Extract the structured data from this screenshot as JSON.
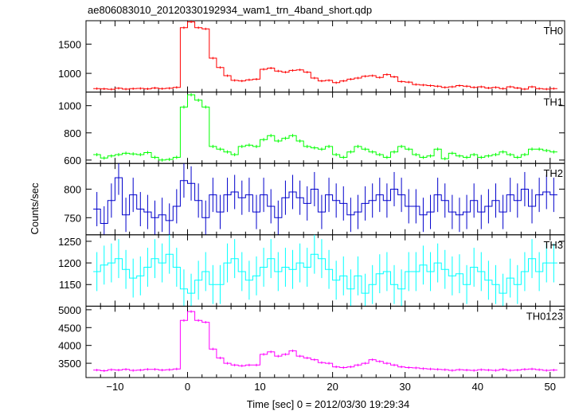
{
  "chart_data": {
    "type": "line",
    "style": "step histogram with error bars",
    "title": "ae806083010_20120330192934_wam1_trn_4band_short.qdp",
    "xlabel": "Time [sec] 0 = 2012/03/30 19:29:34",
    "ylabel": "Counts/sec",
    "xlim": [
      -14,
      52
    ],
    "x_ticks": [
      -10,
      0,
      10,
      20,
      30,
      40,
      50
    ],
    "x": [
      -12.5,
      -11.5,
      -10.5,
      -9.5,
      -8.5,
      -7.5,
      -6.5,
      -5.5,
      -4.5,
      -3.5,
      -2.5,
      -1.5,
      -0.5,
      0.5,
      1.5,
      2.5,
      3.5,
      4.5,
      5.5,
      6.5,
      7.5,
      8.5,
      9.5,
      10.5,
      11.5,
      12.5,
      13.5,
      14.5,
      15.5,
      16.5,
      17.5,
      18.5,
      19.5,
      20.5,
      21.5,
      22.5,
      23.5,
      24.5,
      25.5,
      26.5,
      27.5,
      28.5,
      29.5,
      30.5,
      31.5,
      32.5,
      33.5,
      34.5,
      35.5,
      36.5,
      37.5,
      38.5,
      39.5,
      40.5,
      41.5,
      42.5,
      43.5,
      44.5,
      45.5,
      46.5,
      47.5,
      48.5,
      49.5,
      50.5
    ],
    "panels": [
      {
        "name": "TH0",
        "color": "#ff0000",
        "ylim": [
          680,
          1900
        ],
        "y_ticks": [
          1000,
          1500
        ],
        "error": 20,
        "values": [
          740,
          735,
          728,
          745,
          730,
          738,
          742,
          735,
          750,
          738,
          745,
          760,
          1780,
          1880,
          1780,
          1760,
          1260,
          1100,
          960,
          880,
          870,
          890,
          900,
          1070,
          1090,
          1040,
          1020,
          1050,
          1060,
          1020,
          920,
          870,
          880,
          840,
          870,
          900,
          920,
          950,
          960,
          930,
          980,
          940,
          860,
          850,
          810,
          800,
          790,
          780,
          760,
          770,
          790,
          780,
          760,
          770,
          750,
          760,
          740,
          770,
          750,
          730,
          770,
          740,
          730,
          740
        ]
      },
      {
        "name": "TH1",
        "color": "#00ff00",
        "ylim": [
          575,
          1100
        ],
        "y_ticks": [
          600,
          800,
          1000
        ],
        "error": 12,
        "values": [
          640,
          615,
          630,
          640,
          650,
          645,
          640,
          655,
          620,
          600,
          605,
          620,
          990,
          1080,
          1040,
          990,
          700,
          680,
          660,
          640,
          700,
          710,
          700,
          750,
          780,
          740,
          760,
          780,
          740,
          700,
          690,
          680,
          700,
          640,
          620,
          660,
          700,
          680,
          660,
          640,
          620,
          660,
          700,
          680,
          640,
          620,
          630,
          680,
          610,
          650,
          630,
          620,
          640,
          620,
          630,
          640,
          660,
          640,
          620,
          640,
          680,
          680,
          670,
          660
        ]
      },
      {
        "name": "TH2",
        "color": "#0000cc",
        "ylim": [
          720,
          845
        ],
        "y_ticks": [
          750,
          800
        ],
        "error": 30,
        "values": [
          765,
          740,
          780,
          820,
          755,
          790,
          765,
          760,
          750,
          755,
          745,
          770,
          815,
          810,
          780,
          750,
          790,
          760,
          790,
          795,
          785,
          790,
          760,
          790,
          770,
          750,
          785,
          795,
          785,
          775,
          800,
          760,
          790,
          780,
          775,
          755,
          760,
          775,
          780,
          790,
          780,
          800,
          790,
          770,
          770,
          755,
          760,
          790,
          780,
          760,
          755,
          760,
          780,
          760,
          770,
          780,
          760,
          790,
          780,
          800,
          770,
          790,
          795,
          790
        ]
      },
      {
        "name": "TH3",
        "color": "#00ffff",
        "ylim": [
          1100,
          1265
        ],
        "y_ticks": [
          1150,
          1200,
          1250
        ],
        "error": 45,
        "values": [
          1180,
          1195,
          1200,
          1210,
          1185,
          1165,
          1170,
          1190,
          1210,
          1200,
          1220,
          1190,
          1140,
          1130,
          1160,
          1180,
          1150,
          1150,
          1200,
          1210,
          1180,
          1160,
          1170,
          1190,
          1210,
          1180,
          1190,
          1185,
          1200,
          1190,
          1220,
          1210,
          1185,
          1160,
          1170,
          1140,
          1170,
          1130,
          1150,
          1175,
          1180,
          1150,
          1140,
          1180,
          1180,
          1195,
          1180,
          1200,
          1185,
          1170,
          1175,
          1150,
          1190,
          1180,
          1160,
          1150,
          1130,
          1165,
          1150,
          1180,
          1210,
          1180,
          1200,
          1200
        ]
      },
      {
        "name": "TH0123",
        "color": "#ff00ff",
        "ylim": [
          3100,
          5100
        ],
        "y_ticks": [
          3500,
          4000,
          4500,
          5000
        ],
        "error": 35,
        "values": [
          3310,
          3290,
          3320,
          3310,
          3330,
          3300,
          3310,
          3330,
          3330,
          3310,
          3320,
          3340,
          4700,
          4950,
          4700,
          4650,
          3900,
          3650,
          3500,
          3450,
          3430,
          3450,
          3450,
          3750,
          3820,
          3700,
          3750,
          3850,
          3700,
          3650,
          3600,
          3520,
          3500,
          3400,
          3380,
          3400,
          3450,
          3500,
          3600,
          3550,
          3500,
          3450,
          3400,
          3380,
          3370,
          3350,
          3340,
          3330,
          3320,
          3300,
          3320,
          3310,
          3300,
          3320,
          3310,
          3300,
          3330,
          3300,
          3310,
          3330,
          3340,
          3320,
          3300,
          3310
        ]
      }
    ]
  }
}
